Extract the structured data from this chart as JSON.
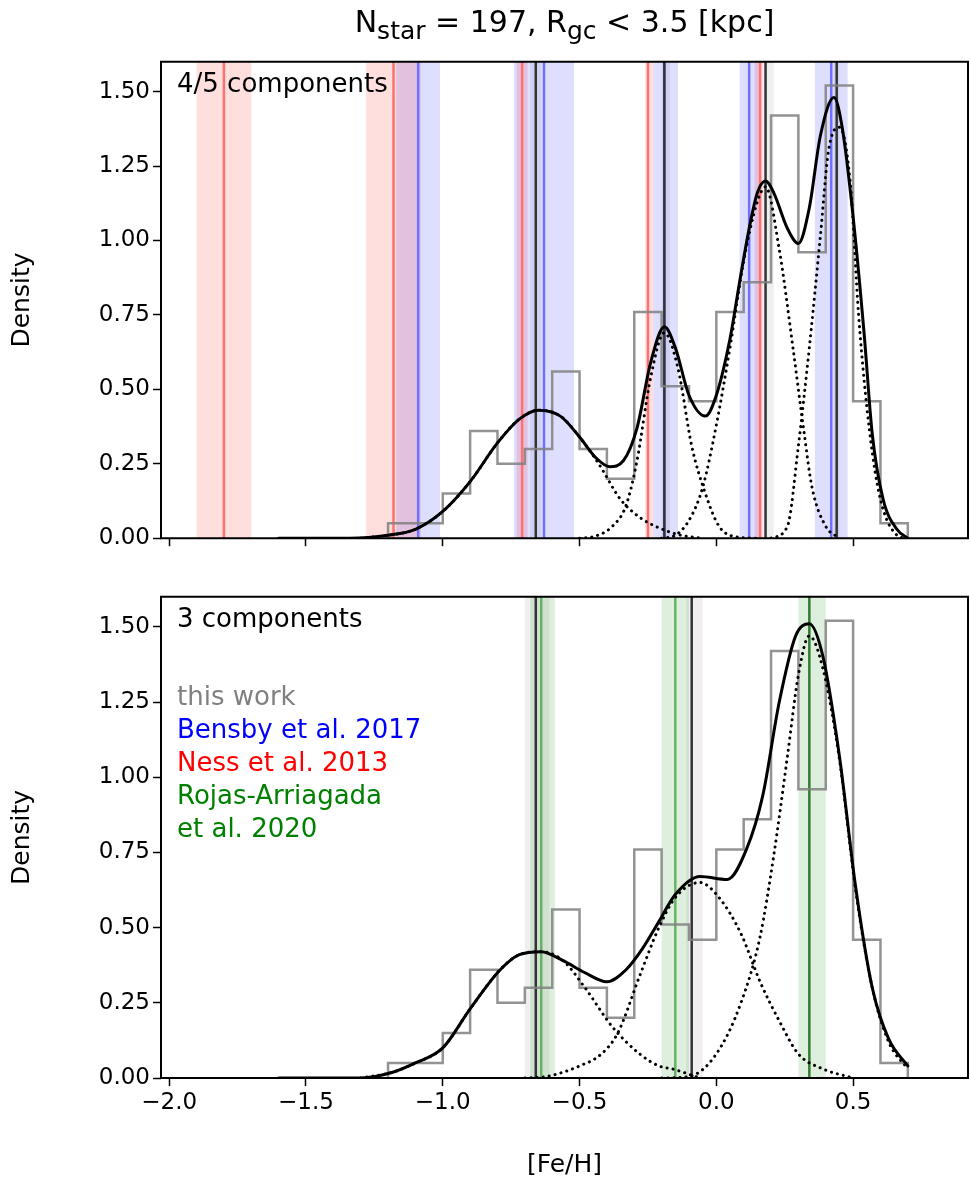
{
  "chart_data": [
    {
      "type": "histogram",
      "title": "N$_{star}$ = 197, R$_{gc}$ < 3.5 [kpc]",
      "ylabel": "Density",
      "annotations": [
        "4/5 components"
      ],
      "bins": [
        -1.2,
        -1.1,
        -1.0,
        -0.9,
        -0.8,
        -0.7,
        -0.6,
        -0.5,
        -0.4,
        -0.3,
        -0.2,
        -0.1,
        0.0,
        0.1,
        0.2,
        0.3,
        0.4,
        0.5,
        0.6,
        0.7
      ],
      "values": [
        0.05,
        0.05,
        0.15,
        0.36,
        0.25,
        0.3,
        0.56,
        0.3,
        0.2,
        0.76,
        0.51,
        0.46,
        0.76,
        0.86,
        1.42,
        0.96,
        1.52,
        0.46,
        0.05
      ],
      "color": "#808080",
      "series": [
        {
          "type": "line",
          "color": "#000000",
          "line_style": "solid",
          "x": [
            -1.6,
            -1.34,
            -1.2,
            -1.1,
            -1.0,
            -0.9,
            -0.8,
            -0.72,
            -0.65,
            -0.57,
            -0.5,
            -0.44,
            -0.39,
            -0.34,
            -0.29,
            -0.24,
            -0.19,
            -0.15,
            -0.1,
            -0.04,
            0.0,
            0.05,
            0.085,
            0.12,
            0.15,
            0.18,
            0.21,
            0.26,
            0.3,
            0.34,
            0.38,
            0.43,
            0.46,
            0.5,
            0.54,
            0.57,
            0.61,
            0.66,
            0.7
          ],
          "values": [
            0,
            0,
            0.01,
            0.03,
            0.09,
            0.19,
            0.32,
            0.4,
            0.43,
            0.41,
            0.34,
            0.27,
            0.24,
            0.26,
            0.37,
            0.59,
            0.71,
            0.64,
            0.48,
            0.41,
            0.48,
            0.67,
            0.86,
            1.04,
            1.16,
            1.2,
            1.16,
            1.04,
            0.99,
            1.11,
            1.35,
            1.48,
            1.38,
            1.08,
            0.69,
            0.35,
            0.13,
            0.03,
            0
          ]
        },
        {
          "type": "line",
          "color": "#000000",
          "line_style": "dotted",
          "x": [
            -1.3,
            -1.2,
            -1.1,
            -1.0,
            -0.9,
            -0.8,
            -0.72,
            -0.65,
            -0.57,
            -0.5,
            -0.43,
            -0.35,
            -0.28,
            -0.21,
            -0.13,
            -0.05
          ],
          "values": [
            0,
            0.01,
            0.03,
            0.09,
            0.19,
            0.32,
            0.4,
            0.43,
            0.41,
            0.34,
            0.25,
            0.13,
            0.07,
            0.035,
            0.01,
            0
          ]
        },
        {
          "type": "line",
          "color": "#000000",
          "line_style": "dotted",
          "x": [
            -0.5,
            -0.45,
            -0.38,
            -0.33,
            -0.29,
            -0.24,
            -0.19,
            -0.14,
            -0.09,
            -0.04,
            0.01,
            0.07,
            0.15
          ],
          "values": [
            0,
            0.005,
            0.04,
            0.11,
            0.26,
            0.54,
            0.69,
            0.57,
            0.31,
            0.15,
            0.04,
            0.005,
            0
          ]
        },
        {
          "type": "line",
          "color": "#000000",
          "line_style": "dotted",
          "x": [
            -0.2,
            -0.15,
            -0.1,
            -0.05,
            0.0,
            0.05,
            0.1,
            0.15,
            0.18,
            0.23,
            0.28,
            0.32,
            0.35,
            0.4,
            0.45
          ],
          "values": [
            0,
            0.01,
            0.06,
            0.17,
            0.38,
            0.64,
            0.93,
            1.13,
            1.18,
            0.97,
            0.64,
            0.36,
            0.17,
            0.04,
            0
          ]
        },
        {
          "type": "line",
          "color": "#000000",
          "line_style": "dotted",
          "x": [
            0.2,
            0.26,
            0.3,
            0.34,
            0.38,
            0.41,
            0.45,
            0.49,
            0.52,
            0.56,
            0.6,
            0.66,
            0.69
          ],
          "values": [
            0,
            0.04,
            0.31,
            0.64,
            1.01,
            1.3,
            1.38,
            1.19,
            0.75,
            0.36,
            0.13,
            0.01,
            0
          ]
        }
      ],
      "ref_lines": [
        {
          "axis": "x",
          "value": -1.8,
          "color": "#ff7070"
        },
        {
          "axis": "x",
          "value": -1.18,
          "color": "#ff7070"
        },
        {
          "axis": "x",
          "value": -0.71,
          "color": "#ff7070"
        },
        {
          "axis": "x",
          "value": -0.25,
          "color": "#ff7070"
        },
        {
          "axis": "x",
          "value": 0.16,
          "color": "#ff7070"
        },
        {
          "axis": "x",
          "value": -1.09,
          "color": "#7070ff"
        },
        {
          "axis": "x",
          "value": -0.63,
          "color": "#7070ff"
        },
        {
          "axis": "x",
          "value": -0.19,
          "color": "#7070ff"
        },
        {
          "axis": "x",
          "value": 0.12,
          "color": "#7070ff"
        },
        {
          "axis": "x",
          "value": 0.42,
          "color": "#7070ff"
        },
        {
          "axis": "x",
          "value": -0.66,
          "color": "#333333"
        },
        {
          "axis": "x",
          "value": -0.19,
          "color": "#333333"
        },
        {
          "axis": "x",
          "value": 0.18,
          "color": "#333333"
        },
        {
          "axis": "x",
          "value": 0.44,
          "color": "#333333"
        }
      ],
      "bands": [
        {
          "axis": "x",
          "from": -0.68,
          "to": -0.64,
          "color": "#808080",
          "label": "this work"
        },
        {
          "axis": "x",
          "from": -0.2,
          "to": -0.17,
          "color": "#808080"
        },
        {
          "axis": "x",
          "from": 0.17,
          "to": 0.21,
          "color": "#808080"
        },
        {
          "axis": "x",
          "from": 0.43,
          "to": 0.45,
          "color": "#808080"
        },
        {
          "axis": "x",
          "from": -1.17,
          "to": -1.01,
          "color": "#0000ff",
          "label": "Bensby et al. 2017"
        },
        {
          "axis": "x",
          "from": -0.74,
          "to": -0.52,
          "color": "#0000ff"
        },
        {
          "axis": "x",
          "from": -0.23,
          "to": -0.14,
          "color": "#0000ff"
        },
        {
          "axis": "x",
          "from": 0.085,
          "to": 0.16,
          "color": "#0000ff"
        },
        {
          "axis": "x",
          "from": 0.36,
          "to": 0.48,
          "color": "#0000ff"
        },
        {
          "axis": "x",
          "from": -1.9,
          "to": -1.7,
          "color": "#ff0000",
          "label": "Ness et al. 2013"
        },
        {
          "axis": "x",
          "from": -1.28,
          "to": -1.08,
          "color": "#ff0000"
        },
        {
          "axis": "x",
          "from": -0.73,
          "to": -0.69,
          "color": "#ff0000"
        },
        {
          "axis": "x",
          "from": -0.26,
          "to": -0.23,
          "color": "#ff0000"
        },
        {
          "axis": "x",
          "from": 0.14,
          "to": 0.17,
          "color": "#ff0000"
        }
      ],
      "xlim": [
        -2.03,
        0.92
      ],
      "xticks": [
        {
          "value": -2.0,
          "label": null
        },
        {
          "value": -1.5,
          "label": null
        },
        {
          "value": -1.0,
          "label": null
        },
        {
          "value": -0.5,
          "label": null
        },
        {
          "value": 0.0,
          "label": null
        },
        {
          "value": 0.5,
          "label": null
        }
      ],
      "ylim": [
        0,
        1.6
      ],
      "yticks": [
        {
          "value": 0,
          "label": "0.00"
        },
        {
          "value": 0.25,
          "label": "0.25"
        },
        {
          "value": 0.5,
          "label": "0.50"
        },
        {
          "value": 0.75,
          "label": "0.75"
        },
        {
          "value": 1.0,
          "label": "1.00"
        },
        {
          "value": 1.25,
          "label": "1.25"
        },
        {
          "value": 1.5,
          "label": "1.50"
        }
      ],
      "tick_labels": "y",
      "grid": false,
      "marker": "none"
    },
    {
      "type": "histogram",
      "xlabel": "[Fe/H]",
      "ylabel": "Density",
      "annotations": [
        "3 components"
      ],
      "bins": [
        -1.2,
        -1.1,
        -1.0,
        -0.9,
        -0.8,
        -0.7,
        -0.6,
        -0.5,
        -0.4,
        -0.3,
        -0.2,
        -0.1,
        0.0,
        0.1,
        0.2,
        0.3,
        0.4,
        0.5,
        0.6,
        0.7
      ],
      "values": [
        0.05,
        0.05,
        0.15,
        0.36,
        0.25,
        0.3,
        0.56,
        0.3,
        0.2,
        0.76,
        0.51,
        0.46,
        0.76,
        0.86,
        1.42,
        0.96,
        1.52,
        0.46,
        0.05
      ],
      "color": "#808080",
      "series": [
        {
          "type": "line",
          "color": "#000000",
          "line_style": "solid",
          "x": [
            -1.6,
            -1.3,
            -1.18,
            -1.1,
            -1.0,
            -0.9,
            -0.79,
            -0.72,
            -0.64,
            -0.56,
            -0.48,
            -0.4,
            -0.33,
            -0.27,
            -0.21,
            -0.15,
            -0.06,
            0.04,
            0.11,
            0.17,
            0.23,
            0.29,
            0.34,
            0.39,
            0.45,
            0.51,
            0.57,
            0.63,
            0.7
          ],
          "values": [
            0,
            0,
            0.02,
            0.05,
            0.1,
            0.23,
            0.36,
            0.41,
            0.42,
            0.39,
            0.35,
            0.32,
            0.36,
            0.43,
            0.52,
            0.61,
            0.67,
            0.66,
            0.76,
            0.94,
            1.25,
            1.47,
            1.51,
            1.4,
            1.07,
            0.63,
            0.3,
            0.13,
            0.04
          ]
        },
        {
          "type": "line",
          "color": "#000000",
          "line_style": "dotted",
          "x": [
            -1.3,
            -1.18,
            -1.1,
            -1.0,
            -0.9,
            -0.79,
            -0.72,
            -0.64,
            -0.56,
            -0.48,
            -0.38,
            -0.28,
            -0.21,
            -0.16,
            -0.06
          ],
          "values": [
            0,
            0.02,
            0.05,
            0.1,
            0.23,
            0.36,
            0.41,
            0.42,
            0.39,
            0.3,
            0.17,
            0.08,
            0.04,
            0.03,
            0
          ]
        },
        {
          "type": "line",
          "color": "#000000",
          "line_style": "dotted",
          "x": [
            -0.7,
            -0.62,
            -0.5,
            -0.42,
            -0.36,
            -0.28,
            -0.21,
            -0.15,
            -0.06,
            0.01,
            0.09,
            0.16,
            0.23,
            0.3,
            0.39,
            0.5
          ],
          "values": [
            0,
            0.005,
            0.04,
            0.08,
            0.15,
            0.34,
            0.5,
            0.6,
            0.65,
            0.6,
            0.48,
            0.32,
            0.19,
            0.08,
            0.03,
            0
          ]
        },
        {
          "type": "line",
          "color": "#000000",
          "line_style": "dotted",
          "x": [
            -0.2,
            -0.1,
            0.0,
            0.09,
            0.16,
            0.21,
            0.26,
            0.3,
            0.34,
            0.39,
            0.45,
            0.51,
            0.57,
            0.63,
            0.7
          ],
          "values": [
            0,
            0.005,
            0.08,
            0.25,
            0.47,
            0.74,
            1.07,
            1.34,
            1.47,
            1.36,
            1.06,
            0.62,
            0.3,
            0.12,
            0.03
          ]
        }
      ],
      "ref_lines": [
        {
          "axis": "x",
          "value": -0.64,
          "color": "#66b366"
        },
        {
          "axis": "x",
          "value": -0.15,
          "color": "#66b366"
        },
        {
          "axis": "x",
          "value": 0.34,
          "color": "#2e7d2e"
        },
        {
          "axis": "x",
          "value": -0.66,
          "color": "#333333"
        },
        {
          "axis": "x",
          "value": -0.09,
          "color": "#333333"
        }
      ],
      "bands": [
        {
          "axis": "x",
          "from": -0.7,
          "to": -0.61,
          "color": "#808080"
        },
        {
          "axis": "x",
          "from": -0.11,
          "to": -0.05,
          "color": "#808080"
        },
        {
          "axis": "x",
          "from": -0.68,
          "to": -0.59,
          "color": "#008000",
          "label": "Rojas-Arriagada et al. 2020"
        },
        {
          "axis": "x",
          "from": -0.2,
          "to": -0.1,
          "color": "#008000"
        },
        {
          "axis": "x",
          "from": 0.3,
          "to": 0.4,
          "color": "#008000"
        }
      ],
      "xlim": [
        -2.03,
        0.92
      ],
      "xticks": [
        {
          "value": -2.0,
          "label": "−2.0"
        },
        {
          "value": -1.5,
          "label": "−1.5"
        },
        {
          "value": -1.0,
          "label": "−1.0"
        },
        {
          "value": -0.5,
          "label": "−0.5"
        },
        {
          "value": 0.0,
          "label": "0.0"
        },
        {
          "value": 0.5,
          "label": "0.5"
        }
      ],
      "ylim": [
        0,
        1.6
      ],
      "yticks": [
        {
          "value": 0,
          "label": "0.00"
        },
        {
          "value": 0.25,
          "label": "0.25"
        },
        {
          "value": 0.5,
          "label": "0.50"
        },
        {
          "value": 0.75,
          "label": "0.75"
        },
        {
          "value": 1.0,
          "label": "1.00"
        },
        {
          "value": 1.25,
          "label": "1.25"
        },
        {
          "value": 1.5,
          "label": "1.50"
        }
      ],
      "legend": "top left",
      "grid": false,
      "marker": "none"
    }
  ]
}
